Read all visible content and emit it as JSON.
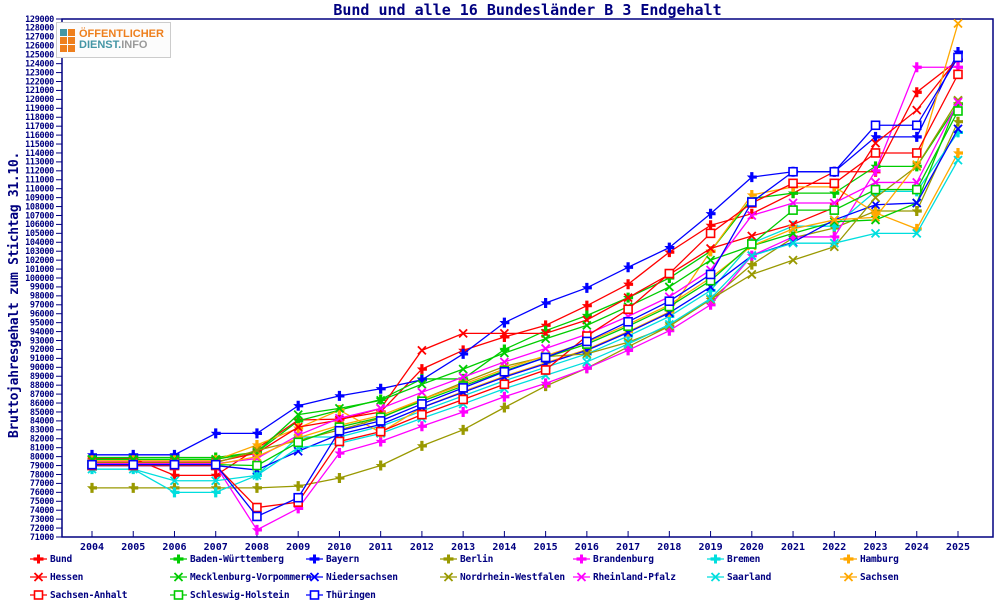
{
  "title": "Bund und alle 16 Bundesländer B 3 Endgehalt",
  "colors": {
    "axis": "#000080",
    "text": "#000080",
    "background": "#ffffff",
    "red": "#ff0000",
    "green": "#00cc00",
    "blue": "#0000ff",
    "olive": "#999900",
    "magenta": "#ff00ff",
    "cyan": "#00dede",
    "orange": "#ffa800"
  },
  "logo": {
    "line1": "ÖFFENTLICHER",
    "line2_primary": "DIENST.",
    "line2_suffix": "INFO",
    "line1_color": "#ee7f1d",
    "line2_primary_color": "#4596a5",
    "line2_suffix_color": "#9a9a9a",
    "icon_colors": [
      "#4596a5",
      "#ee7f1d",
      "#ee7f1d",
      "#ee7f1d",
      "#ee7f1d",
      "#ee7f1d"
    ]
  },
  "y_axis": {
    "label": "Bruttojahresgehalt zum Stichtag 31.10.",
    "min": 71000,
    "max": 129000,
    "tick_step": 1000
  },
  "chart_data": {
    "type": "line",
    "title": "Bund und alle 16 Bundesländer B 3 Endgehalt",
    "xlabel": "",
    "ylabel": "Bruttojahresgehalt zum Stichtag 31.10.",
    "ylim": [
      71000,
      129000
    ],
    "ytick_step": 1000,
    "grid": false,
    "legend_position": "bottom",
    "x": [
      2004,
      2005,
      2006,
      2007,
      2008,
      2009,
      2010,
      2011,
      2012,
      2013,
      2014,
      2015,
      2016,
      2017,
      2018,
      2019,
      2020,
      2021,
      2022,
      2023,
      2024,
      2025
    ],
    "series": [
      {
        "name": "Bund",
        "color": "#ff0000",
        "marker": "plus",
        "values": [
          79800,
          79800,
          77900,
          77900,
          80900,
          84100,
          84200,
          85000,
          89800,
          91900,
          93400,
          94700,
          96900,
          99300,
          102900,
          105900,
          107200,
          109500,
          111900,
          111900,
          120800,
          124400
        ]
      },
      {
        "name": "Baden-Württemberg",
        "color": "#00cc00",
        "marker": "plus",
        "values": [
          79900,
          79900,
          79900,
          79900,
          80500,
          84000,
          85200,
          86400,
          88700,
          88700,
          92000,
          94100,
          95800,
          97800,
          100000,
          103000,
          108900,
          109500,
          109500,
          112500,
          112500,
          119500
        ]
      },
      {
        "name": "Bayern",
        "color": "#0000ff",
        "marker": "plus",
        "values": [
          80200,
          80200,
          80200,
          82600,
          82600,
          85700,
          86800,
          87600,
          88600,
          91500,
          95000,
          97200,
          98900,
          101200,
          103400,
          107200,
          111300,
          111900,
          111900,
          115800,
          115800,
          125300
        ]
      },
      {
        "name": "Berlin",
        "color": "#999900",
        "marker": "plus",
        "values": [
          76500,
          76500,
          76500,
          76500,
          76500,
          76700,
          77600,
          79000,
          81200,
          83000,
          85500,
          87900,
          89900,
          92300,
          94600,
          97600,
          101500,
          104500,
          105600,
          107500,
          107500,
          117500
        ]
      },
      {
        "name": "Brandenburg",
        "color": "#ff00ff",
        "marker": "plus",
        "values": [
          79000,
          79000,
          79000,
          79000,
          71800,
          74200,
          80400,
          81700,
          83400,
          85000,
          86700,
          88200,
          89900,
          91900,
          94100,
          97000,
          102500,
          104600,
          104600,
          112000,
          123600,
          123600
        ]
      },
      {
        "name": "Bremen",
        "color": "#00dede",
        "marker": "plus",
        "values": [
          78600,
          78600,
          76000,
          76000,
          77900,
          82200,
          82200,
          83400,
          85100,
          86800,
          88500,
          90000,
          91500,
          93500,
          95700,
          98600,
          103900,
          105800,
          105800,
          109700,
          109700,
          116300
        ]
      },
      {
        "name": "Hamburg",
        "color": "#ffa800",
        "marker": "plus",
        "values": [
          79600,
          79600,
          79600,
          79600,
          81300,
          83200,
          85200,
          82700,
          85500,
          87300,
          89000,
          90500,
          92000,
          94000,
          96200,
          103000,
          109300,
          110200,
          110200,
          107300,
          105500,
          114000
        ]
      },
      {
        "name": "Hessen",
        "color": "#ff0000",
        "marker": "x",
        "values": [
          79400,
          79400,
          79400,
          79400,
          80400,
          83300,
          84100,
          85400,
          91900,
          93800,
          93800,
          93800,
          95300,
          97800,
          100400,
          103300,
          104700,
          106000,
          107900,
          115100,
          118800,
          124600
        ]
      },
      {
        "name": "Mecklenburg-Vorpommern",
        "color": "#00cc00",
        "marker": "x",
        "values": [
          79700,
          79700,
          79700,
          79700,
          80500,
          84700,
          85400,
          86300,
          88100,
          89800,
          91600,
          93200,
          94700,
          96800,
          99000,
          102000,
          103600,
          105000,
          106300,
          106500,
          108400,
          119800
        ]
      },
      {
        "name": "Niedersachsen",
        "color": "#0000ff",
        "marker": "x",
        "values": [
          79000,
          79000,
          79000,
          79000,
          78500,
          80600,
          82500,
          83600,
          85500,
          87200,
          88900,
          90400,
          91900,
          93900,
          96100,
          99000,
          102500,
          104000,
          106500,
          108200,
          108400,
          116700
        ]
      },
      {
        "name": "Nordrhein-Westfalen",
        "color": "#999900",
        "marker": "x",
        "values": [
          79300,
          79300,
          79300,
          79300,
          80700,
          81800,
          83000,
          84300,
          86400,
          88300,
          90100,
          91200,
          91500,
          92800,
          94600,
          97600,
          100400,
          102000,
          103500,
          109000,
          112500,
          119900
        ]
      },
      {
        "name": "Rheinland-Pfalz",
        "color": "#ff00ff",
        "marker": "x",
        "values": [
          79200,
          79200,
          79200,
          79200,
          79800,
          82400,
          84300,
          85400,
          87200,
          88900,
          90600,
          92100,
          93700,
          95700,
          97900,
          100900,
          107000,
          108400,
          108400,
          110700,
          110700,
          119700
        ]
      },
      {
        "name": "Saarland",
        "color": "#00dede",
        "marker": "x",
        "values": [
          78600,
          78600,
          77300,
          77300,
          77900,
          81000,
          81500,
          82600,
          84300,
          85900,
          87600,
          89100,
          90600,
          92600,
          94800,
          97700,
          102500,
          103900,
          103900,
          105000,
          105000,
          113200
        ]
      },
      {
        "name": "Sachsen",
        "color": "#ffa800",
        "marker": "x",
        "values": [
          79100,
          79100,
          79100,
          79100,
          80000,
          82100,
          83500,
          84600,
          86400,
          88100,
          89800,
          91300,
          92800,
          94800,
          97000,
          100000,
          103600,
          105500,
          106500,
          106800,
          112700,
          128500
        ]
      },
      {
        "name": "Sachsen-Anhalt",
        "color": "#ff0000",
        "marker": "square",
        "values": [
          79000,
          79000,
          79000,
          79000,
          74300,
          74900,
          81700,
          82800,
          84700,
          86400,
          88100,
          89700,
          93500,
          96500,
          100500,
          105000,
          108400,
          110600,
          110600,
          114000,
          114000,
          122800
        ]
      },
      {
        "name": "Schleswig-Holstein",
        "color": "#00cc00",
        "marker": "square",
        "values": [
          79100,
          79100,
          79100,
          79100,
          79000,
          81600,
          83300,
          84400,
          86200,
          87900,
          89600,
          91100,
          92600,
          94600,
          96800,
          99700,
          103800,
          107600,
          107600,
          109900,
          109900,
          118700
        ]
      },
      {
        "name": "Thüringen",
        "color": "#0000ff",
        "marker": "square",
        "values": [
          79100,
          79100,
          79100,
          79100,
          73300,
          75400,
          82900,
          84000,
          85900,
          87700,
          89500,
          91100,
          92900,
          95100,
          97400,
          100400,
          108500,
          111900,
          111900,
          117100,
          117100,
          124700
        ]
      }
    ]
  }
}
